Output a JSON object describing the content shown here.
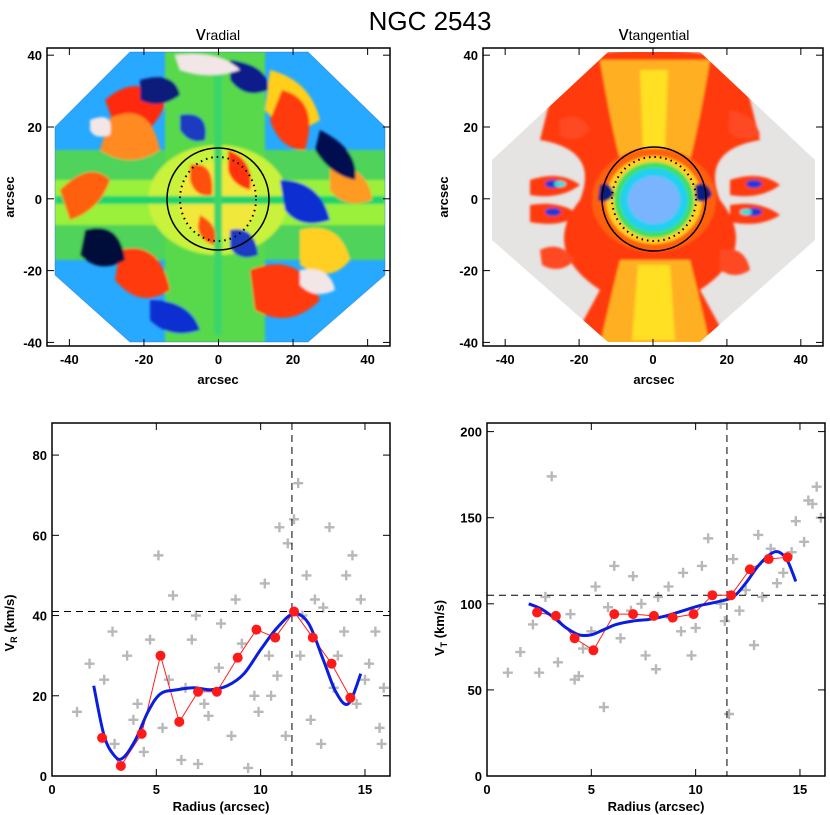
{
  "figure_title": "NGC 2543",
  "chart_data": [
    {
      "type": "heatmap",
      "title_main": "v",
      "title_sub": "radial",
      "xlabel": "arcsec",
      "ylabel": "arcsec",
      "xlim": [
        -46,
        46
      ],
      "ylim": [
        -41,
        42
      ],
      "xticks": [
        -40,
        -20,
        0,
        20,
        40
      ],
      "yticks": [
        -40,
        -20,
        0,
        20,
        40
      ],
      "ellipse_radius": 14
    },
    {
      "type": "heatmap",
      "title_main": "v",
      "title_sub": "tangential",
      "xlabel": "arcsec",
      "ylabel": "arcsec",
      "xlim": [
        -46,
        46
      ],
      "ylim": [
        -41,
        42
      ],
      "xticks": [
        -40,
        -20,
        0,
        20,
        40
      ],
      "yticks": [
        -40,
        -20,
        0,
        20,
        40
      ],
      "ellipse_radius": 14
    },
    {
      "type": "scatter",
      "xlabel": "Radius (arcsec)",
      "ylabel_main": "V",
      "ylabel_sub": "R",
      "ylabel_unit": " (km/s)",
      "xlim": [
        0,
        16.2
      ],
      "ylim": [
        0,
        88
      ],
      "xticks": [
        0,
        5,
        10,
        15
      ],
      "yticks": [
        0,
        20,
        40,
        60,
        80
      ],
      "vline": 11.5,
      "hline": 41,
      "series": [
        {
          "name": "binned",
          "x": [
            2.4,
            3.3,
            4.3,
            5.2,
            6.1,
            7.0,
            7.9,
            8.9,
            9.8,
            10.7,
            11.6,
            12.5,
            13.4,
            14.3
          ],
          "y": [
            9.5,
            2.5,
            10.5,
            30,
            13.5,
            21,
            21,
            29.5,
            36.5,
            34.5,
            41,
            34.5,
            28,
            19.5
          ]
        },
        {
          "name": "fit",
          "x": [
            2.0,
            2.5,
            3.0,
            3.4,
            4.0,
            4.6,
            5.2,
            6.0,
            6.8,
            7.6,
            8.4,
            9.2,
            10.0,
            10.8,
            11.6,
            12.3,
            13.0,
            13.6,
            14.2,
            14.8
          ],
          "y": [
            22.5,
            10,
            5,
            4.5,
            9,
            16,
            20.5,
            21.5,
            22,
            21.5,
            22.5,
            25.5,
            31.5,
            37,
            40.5,
            38,
            29,
            21,
            18,
            25.5
          ]
        },
        {
          "name": "pixels",
          "x": [
            1.2,
            1.8,
            2.5,
            3.0,
            3.6,
            4.1,
            4.7,
            5.3,
            5.8,
            6.4,
            6.9,
            7.5,
            8.0,
            8.6,
            9.1,
            9.7,
            10.2,
            10.8,
            11.3,
            11.9,
            12.4,
            13.0,
            13.5,
            14.1,
            14.6,
            15.2,
            15.7,
            4.4,
            5.1,
            6.2,
            7.3,
            8.1,
            9.4,
            10.4,
            11.2,
            11.8,
            12.6,
            13.3,
            14.0,
            15.0,
            15.8,
            2.9,
            3.9,
            5.6,
            6.7,
            8.8,
            9.9,
            10.9,
            12.2,
            13.7,
            14.8,
            15.5,
            7.0,
            10.5,
            12.9,
            14.4,
            15.9,
            11.6,
            12.0
          ],
          "y": [
            16,
            28,
            24,
            8,
            30,
            18,
            34,
            12,
            45,
            22,
            40,
            15,
            27,
            10,
            33,
            20,
            48,
            25,
            58,
            30,
            14,
            42,
            22,
            50,
            18,
            28,
            12,
            6,
            55,
            4,
            18,
            38,
            2,
            30,
            10,
            73,
            44,
            62,
            36,
            24,
            8,
            36,
            14,
            24,
            34,
            44,
            16,
            62,
            50,
            30,
            44,
            36,
            3,
            20,
            8,
            55,
            22,
            64,
            40
          ]
        }
      ]
    },
    {
      "type": "scatter",
      "xlabel": "Radius (arcsec)",
      "ylabel_main": "V",
      "ylabel_sub": "T",
      "ylabel_unit": " (km/s)",
      "xlim": [
        0,
        16.2
      ],
      "ylim": [
        0,
        205
      ],
      "xticks": [
        0,
        5,
        10,
        15
      ],
      "yticks": [
        0,
        50,
        100,
        150,
        200
      ],
      "vline": 11.5,
      "hline": 105,
      "series": [
        {
          "name": "binned",
          "x": [
            2.4,
            3.3,
            4.2,
            5.1,
            6.1,
            7.0,
            8.0,
            8.9,
            9.9,
            10.8,
            11.7,
            12.6,
            13.5,
            14.4
          ],
          "y": [
            95,
            93,
            80,
            73,
            94,
            94,
            93,
            92,
            94,
            105,
            105,
            120,
            126,
            127
          ]
        },
        {
          "name": "fit",
          "x": [
            2.0,
            2.6,
            3.2,
            3.8,
            4.4,
            5.0,
            5.6,
            6.2,
            7.0,
            7.8,
            8.6,
            9.4,
            10.2,
            11.0,
            11.8,
            12.4,
            13.0,
            13.6,
            14.0,
            14.4,
            14.8
          ],
          "y": [
            100,
            97,
            92,
            86,
            82,
            82,
            85,
            88,
            90,
            91,
            93,
            96,
            99,
            101,
            104,
            112,
            122,
            129,
            130,
            125,
            113
          ]
        },
        {
          "name": "pixels",
          "x": [
            1.0,
            1.6,
            2.2,
            2.8,
            3.4,
            4.0,
            4.6,
            5.2,
            5.8,
            6.4,
            7.0,
            7.6,
            8.2,
            8.8,
            9.4,
            10.0,
            10.6,
            11.2,
            11.8,
            12.4,
            13.0,
            13.6,
            14.2,
            14.8,
            15.4,
            16.0,
            3.1,
            4.4,
            5.6,
            6.9,
            8.1,
            9.3,
            10.3,
            11.4,
            12.8,
            13.9,
            15.2,
            15.8,
            2.5,
            5.0,
            7.4,
            9.8,
            12.1,
            14.6,
            4.2,
            6.1,
            8.7,
            11.6,
            13.2,
            15.6
          ],
          "y": [
            60,
            72,
            88,
            104,
            66,
            94,
            74,
            110,
            98,
            80,
            116,
            70,
            104,
            92,
            118,
            86,
            138,
            100,
            126,
            108,
            140,
            132,
            118,
            148,
            160,
            150,
            174,
            58,
            40,
            96,
            62,
            84,
            122,
            90,
            76,
            112,
            136,
            168,
            60,
            84,
            100,
            70,
            96,
            130,
            56,
            122,
            110,
            36,
            104,
            158
          ]
        }
      ]
    }
  ]
}
